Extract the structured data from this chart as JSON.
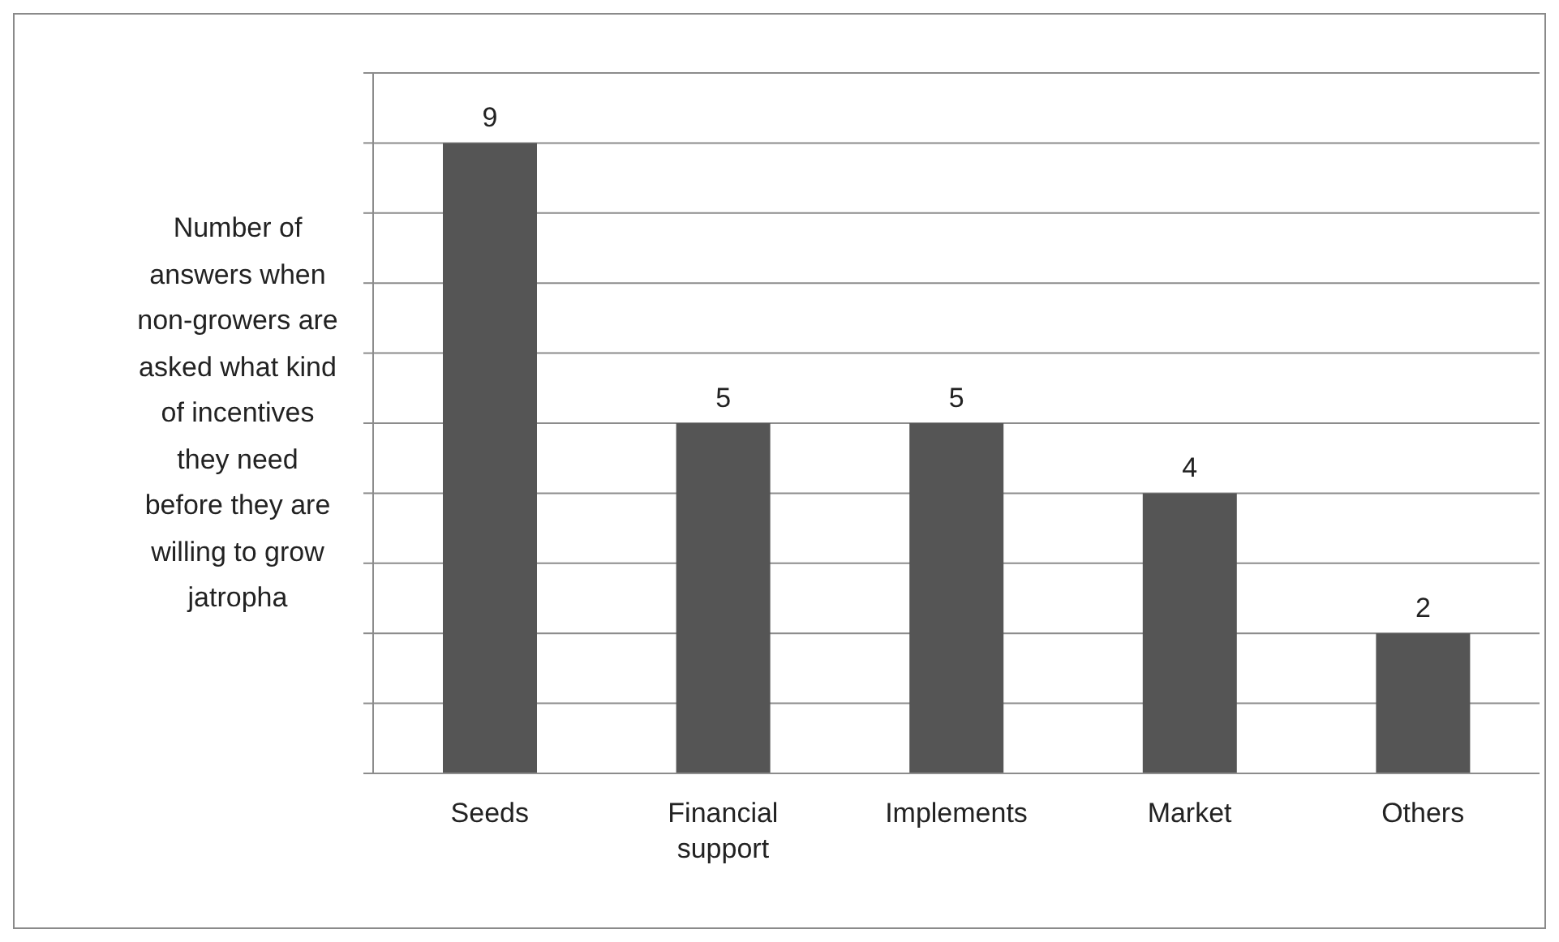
{
  "chart_data": {
    "type": "bar",
    "ylabel": "Number of answers when non-growers are asked what kind of incentives they need before they are willing to grow jatropha",
    "categories": [
      "Seeds",
      "Financial support",
      "Implements",
      "Market",
      "Others"
    ],
    "values": [
      9,
      5,
      5,
      4,
      2
    ],
    "color": "#555555",
    "ylim": [
      0,
      10
    ],
    "yticks": [
      0,
      1,
      2,
      3,
      4,
      5,
      6,
      7,
      8,
      9,
      10
    ],
    "tick_labels": "x",
    "grid": "y",
    "data_labels": true
  }
}
